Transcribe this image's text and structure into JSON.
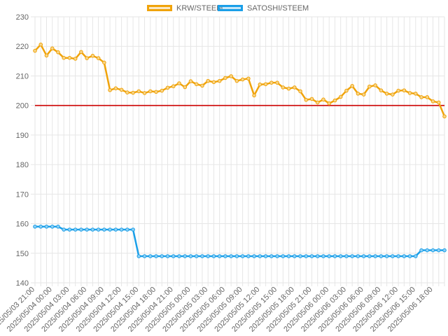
{
  "chart_data": {
    "type": "line",
    "legend_position": "top",
    "grid": true,
    "ylim": [
      140,
      230
    ],
    "yticks": [
      140,
      150,
      160,
      170,
      180,
      190,
      200,
      210,
      220,
      230
    ],
    "reference_line": {
      "value": 200,
      "color": "#cc0000"
    },
    "xticks": [
      "2025/05/03 21:00",
      "2025/05/04 00:00",
      "2025/05/04 03:00",
      "2025/05/04 06:00",
      "2025/05/04 09:00",
      "2025/05/04 12:00",
      "2025/05/04 15:00",
      "2025/05/04 18:00",
      "2025/05/04 21:00",
      "2025/05/05 00:00",
      "2025/05/05 03:00",
      "2025/05/05 06:00",
      "2025/05/05 09:00",
      "2025/05/05 12:00",
      "2025/05/05 15:00",
      "2025/05/05 18:00",
      "2025/05/05 21:00",
      "2025/05/06 00:00",
      "2025/05/06 03:00",
      "2025/05/06 06:00",
      "2025/05/06 09:00",
      "2025/05/06 12:00",
      "2025/05/06 15:00",
      "2025/05/06 18:00"
    ],
    "series": [
      {
        "name": "KRW/STEEM",
        "color": "#f0a30a",
        "values": [
          218.5,
          220.6,
          216.9,
          219.3,
          218.0,
          216.1,
          216.1,
          215.8,
          218.1,
          216.0,
          216.8,
          216.0,
          214.5,
          205.2,
          205.8,
          205.3,
          204.4,
          204.3,
          204.8,
          204.2,
          204.8,
          204.6,
          205.0,
          206.0,
          206.5,
          207.5,
          206.2,
          208.2,
          207.2,
          206.7,
          208.3,
          207.9,
          208.3,
          209.3,
          209.9,
          208.3,
          208.8,
          209.1,
          203.4,
          207.1,
          207.2,
          207.7,
          207.7,
          206.1,
          205.7,
          206.1,
          204.8,
          201.9,
          202.2,
          201.0,
          202.0,
          200.7,
          201.7,
          202.9,
          205.0,
          206.6,
          204.0,
          203.7,
          206.4,
          206.8,
          205.1,
          204.0,
          203.7,
          205.0,
          205.1,
          204.2,
          204.0,
          202.8,
          202.8,
          201.4,
          201.0,
          196.3
        ]
      },
      {
        "name": "SATOSHI/STEEM",
        "color": "#1a9fe8",
        "values": [
          159,
          159,
          159,
          159,
          159,
          158,
          158,
          158,
          158,
          158,
          158,
          158,
          158,
          158,
          158,
          158,
          158,
          158,
          149,
          149,
          149,
          149,
          149,
          149,
          149,
          149,
          149,
          149,
          149,
          149,
          149,
          149,
          149,
          149,
          149,
          149,
          149,
          149,
          149,
          149,
          149,
          149,
          149,
          149,
          149,
          149,
          149,
          149,
          149,
          149,
          149,
          149,
          149,
          149,
          149,
          149,
          149,
          149,
          149,
          149,
          149,
          149,
          149,
          149,
          149,
          149,
          149,
          151,
          151,
          151,
          151,
          151
        ]
      }
    ]
  }
}
